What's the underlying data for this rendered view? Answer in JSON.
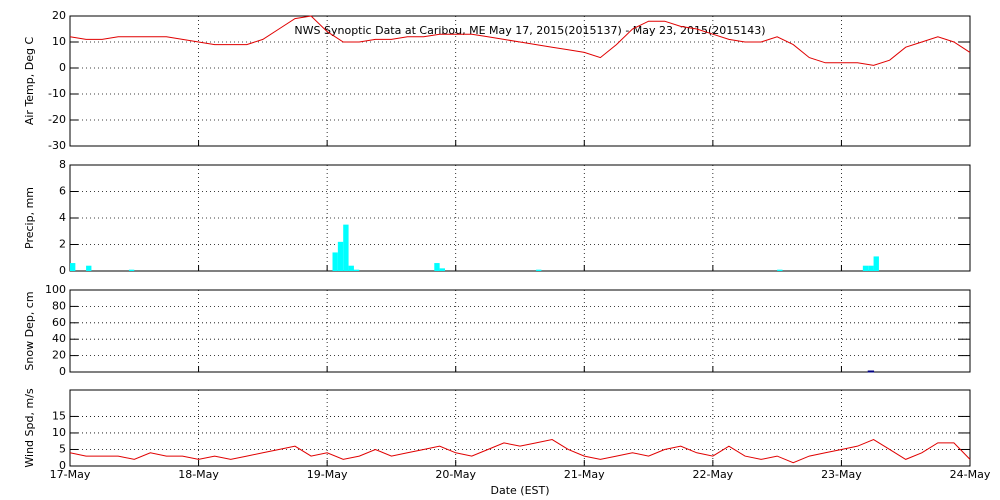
{
  "chart_data": [
    {
      "type": "line",
      "title": "NWS Synoptic Data at Caribou, ME   May 17, 2015(2015137) - May 23, 2015(2015143)",
      "ylabel": "Air Temp, Deg C",
      "ylim": [
        -30,
        20
      ],
      "yticks": [
        -30,
        -20,
        -10,
        0,
        10,
        20
      ],
      "xlim": [
        0,
        168
      ],
      "grid": true,
      "x": [
        0,
        3,
        6,
        9,
        12,
        15,
        18,
        21,
        24,
        27,
        30,
        33,
        36,
        39,
        42,
        45,
        48,
        51,
        54,
        57,
        60,
        63,
        66,
        69,
        72,
        75,
        78,
        81,
        84,
        87,
        90,
        93,
        96,
        99,
        102,
        105,
        108,
        111,
        114,
        117,
        120,
        123,
        126,
        129,
        132,
        135,
        138,
        141,
        144,
        147,
        150,
        153,
        156,
        159,
        162,
        165,
        168
      ],
      "series": [
        {
          "color": "#e00000",
          "values": [
            12,
            11,
            11,
            12,
            12,
            12,
            12,
            11,
            10,
            9,
            9,
            9,
            11,
            15,
            19,
            20,
            14,
            10,
            10,
            11,
            11,
            12,
            12,
            13,
            13,
            13,
            12,
            11,
            10,
            9,
            8,
            7,
            6,
            4,
            9,
            15,
            18,
            18,
            16,
            15,
            13,
            11,
            10,
            10,
            12,
            9,
            4,
            2,
            2,
            2,
            1,
            3,
            8,
            10,
            12,
            10,
            6
          ]
        }
      ]
    },
    {
      "type": "bar",
      "ylabel": "Precip, mm",
      "ylim": [
        0,
        8
      ],
      "yticks": [
        0,
        2,
        4,
        6,
        8
      ],
      "xlim": [
        0,
        168
      ],
      "grid": true,
      "x": [
        0,
        3,
        11,
        49,
        50,
        51,
        52,
        53,
        68,
        69,
        87,
        132,
        148,
        149,
        150
      ],
      "series": [
        {
          "color": "#00ffff",
          "values": [
            0.6,
            0.4,
            0.1,
            1.4,
            2.2,
            3.5,
            0.4,
            0.1,
            0.6,
            0.2,
            0.1,
            0.1,
            0.4,
            0.4,
            1.1
          ]
        }
      ]
    },
    {
      "type": "bar",
      "ylabel": "Snow Dep, cm",
      "ylim": [
        0,
        100
      ],
      "yticks": [
        0,
        20,
        40,
        60,
        80,
        100
      ],
      "xlim": [
        0,
        168
      ],
      "grid": true,
      "x": [
        149
      ],
      "series": [
        {
          "color": "#000080",
          "values": [
            1
          ]
        }
      ]
    },
    {
      "type": "line",
      "ylabel": "Wind Spd, m/s",
      "xlabel": "Date (EST)",
      "ylim": [
        0,
        23
      ],
      "yticks": [
        0,
        5,
        10,
        15
      ],
      "xlim": [
        0,
        168
      ],
      "grid": true,
      "xticks": [
        {
          "value": 0,
          "label": "17-May"
        },
        {
          "value": 24,
          "label": "18-May"
        },
        {
          "value": 48,
          "label": "19-May"
        },
        {
          "value": 72,
          "label": "20-May"
        },
        {
          "value": 96,
          "label": "21-May"
        },
        {
          "value": 120,
          "label": "22-May"
        },
        {
          "value": 144,
          "label": "23-May"
        },
        {
          "value": 168,
          "label": "24-May"
        }
      ],
      "x": [
        0,
        3,
        6,
        9,
        12,
        15,
        18,
        21,
        24,
        27,
        30,
        33,
        36,
        39,
        42,
        45,
        48,
        51,
        54,
        57,
        60,
        63,
        66,
        69,
        72,
        75,
        78,
        81,
        84,
        87,
        90,
        93,
        96,
        99,
        102,
        105,
        108,
        111,
        114,
        117,
        120,
        123,
        126,
        129,
        132,
        135,
        138,
        141,
        144,
        147,
        150,
        153,
        156,
        159,
        162,
        165,
        168
      ],
      "series": [
        {
          "color": "#e00000",
          "values": [
            4,
            3,
            3,
            3,
            2,
            4,
            3,
            3,
            2,
            3,
            2,
            3,
            4,
            5,
            6,
            3,
            4,
            2,
            3,
            5,
            3,
            4,
            5,
            6,
            4,
            3,
            5,
            7,
            6,
            7,
            8,
            5,
            3,
            2,
            3,
            4,
            3,
            5,
            6,
            4,
            3,
            6,
            3,
            2,
            3,
            1,
            3,
            4,
            5,
            6,
            8,
            5,
            2,
            4,
            7,
            7,
            2
          ]
        }
      ]
    }
  ]
}
